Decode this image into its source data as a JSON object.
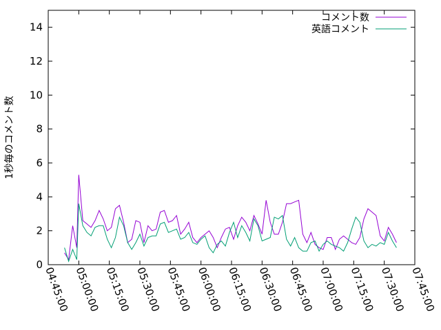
{
  "chart_data": {
    "type": "line",
    "title": "",
    "xlabel": "",
    "ylabel": "1秒毎のコメント数",
    "xlim": [
      "04:45:00",
      "07:45:00"
    ],
    "ylim": [
      0,
      15
    ],
    "x_ticks": [
      "04:45:00",
      "05:00:00",
      "05:15:00",
      "05:30:00",
      "05:45:00",
      "06:00:00",
      "06:15:00",
      "06:30:00",
      "06:45:00",
      "07:00:00",
      "07:15:00",
      "07:30:00",
      "07:45:00"
    ],
    "y_ticks": [
      0,
      2,
      4,
      6,
      8,
      10,
      12,
      14
    ],
    "legend_position": "top-right",
    "series": [
      {
        "name": "コメント数",
        "color": "#9400d3",
        "x": [
          "04:53:00",
          "04:55:00",
          "04:57:00",
          "04:59:00",
          "05:00:00",
          "05:02:00",
          "05:04:00",
          "05:06:00",
          "05:08:00",
          "05:10:00",
          "05:12:00",
          "05:14:00",
          "05:16:00",
          "05:18:00",
          "05:20:00",
          "05:22:00",
          "05:24:00",
          "05:26:00",
          "05:28:00",
          "05:30:00",
          "05:32:00",
          "05:34:00",
          "05:36:00",
          "05:38:00",
          "05:40:00",
          "05:42:00",
          "05:44:00",
          "05:46:00",
          "05:48:00",
          "05:50:00",
          "05:52:00",
          "05:54:00",
          "05:56:00",
          "05:58:00",
          "06:00:00",
          "06:02:00",
          "06:04:00",
          "06:06:00",
          "06:08:00",
          "06:10:00",
          "06:12:00",
          "06:14:00",
          "06:16:00",
          "06:18:00",
          "06:20:00",
          "06:22:00",
          "06:24:00",
          "06:26:00",
          "06:28:00",
          "06:30:00",
          "06:32:00",
          "06:34:00",
          "06:36:00",
          "06:38:00",
          "06:40:00",
          "06:42:00",
          "06:44:00",
          "06:46:00",
          "06:48:00",
          "06:50:00",
          "06:52:00",
          "06:54:00",
          "06:56:00",
          "06:58:00",
          "07:00:00",
          "07:02:00",
          "07:04:00",
          "07:06:00",
          "07:08:00",
          "07:10:00",
          "07:12:00",
          "07:14:00",
          "07:16:00",
          "07:18:00",
          "07:20:00",
          "07:22:00",
          "07:24:00",
          "07:26:00",
          "07:28:00",
          "07:30:00",
          "07:32:00",
          "07:34:00",
          "07:36:00"
        ],
        "y": [
          0.7,
          0.3,
          2.3,
          1.0,
          5.3,
          2.6,
          2.4,
          2.2,
          2.6,
          3.2,
          2.7,
          2.0,
          2.2,
          3.3,
          3.5,
          2.5,
          1.3,
          1.5,
          2.6,
          2.5,
          1.3,
          2.3,
          2.0,
          2.1,
          3.1,
          3.2,
          2.5,
          2.6,
          2.9,
          1.8,
          2.1,
          2.5,
          1.6,
          1.3,
          1.6,
          1.8,
          2.0,
          1.6,
          1.0,
          1.6,
          2.1,
          2.2,
          1.5,
          2.3,
          2.8,
          2.5,
          2.0,
          2.9,
          2.4,
          1.8,
          3.8,
          2.5,
          1.8,
          1.8,
          2.5,
          3.6,
          3.6,
          3.7,
          3.8,
          1.8,
          1.3,
          1.9,
          1.2,
          1.0,
          0.9,
          1.6,
          1.6,
          0.9,
          1.5,
          1.7,
          1.5,
          1.3,
          1.2,
          1.6,
          2.7,
          3.3,
          3.1,
          2.9,
          1.7,
          1.4,
          2.2,
          1.8,
          1.3
        ]
      },
      {
        "name": "英語コメント",
        "color": "#009e73",
        "x": [
          "04:53:00",
          "04:55:00",
          "04:57:00",
          "04:59:00",
          "05:00:00",
          "05:02:00",
          "05:04:00",
          "05:06:00",
          "05:08:00",
          "05:10:00",
          "05:12:00",
          "05:14:00",
          "05:16:00",
          "05:18:00",
          "05:20:00",
          "05:22:00",
          "05:24:00",
          "05:26:00",
          "05:28:00",
          "05:30:00",
          "05:32:00",
          "05:34:00",
          "05:36:00",
          "05:38:00",
          "05:40:00",
          "05:42:00",
          "05:44:00",
          "05:46:00",
          "05:48:00",
          "05:50:00",
          "05:52:00",
          "05:54:00",
          "05:56:00",
          "05:58:00",
          "06:00:00",
          "06:02:00",
          "06:04:00",
          "06:06:00",
          "06:08:00",
          "06:10:00",
          "06:12:00",
          "06:14:00",
          "06:16:00",
          "06:18:00",
          "06:20:00",
          "06:22:00",
          "06:24:00",
          "06:26:00",
          "06:28:00",
          "06:30:00",
          "06:32:00",
          "06:34:00",
          "06:36:00",
          "06:38:00",
          "06:40:00",
          "06:42:00",
          "06:44:00",
          "06:46:00",
          "06:48:00",
          "06:50:00",
          "06:52:00",
          "06:54:00",
          "06:56:00",
          "06:58:00",
          "07:00:00",
          "07:02:00",
          "07:04:00",
          "07:06:00",
          "07:08:00",
          "07:10:00",
          "07:12:00",
          "07:14:00",
          "07:16:00",
          "07:18:00",
          "07:20:00",
          "07:22:00",
          "07:24:00",
          "07:26:00",
          "07:28:00",
          "07:30:00",
          "07:32:00",
          "07:34:00",
          "07:36:00"
        ],
        "y": [
          1.0,
          0.2,
          0.9,
          0.3,
          3.6,
          2.3,
          1.9,
          1.7,
          2.2,
          2.3,
          2.3,
          1.5,
          1.0,
          1.6,
          2.8,
          2.3,
          1.3,
          0.9,
          1.3,
          1.8,
          1.1,
          1.6,
          1.7,
          1.7,
          2.4,
          2.5,
          1.9,
          2.0,
          2.1,
          1.5,
          1.6,
          1.9,
          1.3,
          1.2,
          1.5,
          1.7,
          1.0,
          0.7,
          1.2,
          1.4,
          1.1,
          1.9,
          2.5,
          1.6,
          2.3,
          1.9,
          1.4,
          2.7,
          2.3,
          1.4,
          1.5,
          1.6,
          2.8,
          2.7,
          2.9,
          1.5,
          1.1,
          1.6,
          1.0,
          0.8,
          0.8,
          1.3,
          1.4,
          0.8,
          1.2,
          1.4,
          1.2,
          1.1,
          1.0,
          0.8,
          1.3,
          2.1,
          2.8,
          2.5,
          1.4,
          1.0,
          1.2,
          1.1,
          1.3,
          1.2,
          1.9,
          1.4,
          1.0
        ]
      }
    ]
  }
}
